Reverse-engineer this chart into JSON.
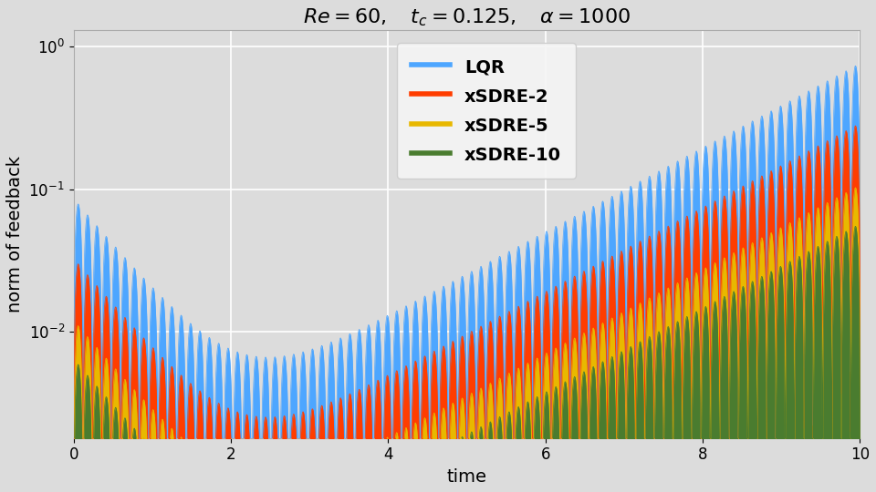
{
  "title": "$Re = 60, \\quad t_c = 0.125, \\quad \\alpha = 1000$",
  "xlabel": "time",
  "ylabel": "norm of feedback",
  "xlim": [
    0,
    10
  ],
  "ymin": 0.0018,
  "ymax": 1.3,
  "background_color": "#dcdcdc",
  "grid_color": "#ffffff",
  "series": [
    {
      "label": "LQR",
      "color": "#4da6ff",
      "amp0": 0.085,
      "amp_growth": 0.00085,
      "decay": 1.5,
      "growth": 0.68
    },
    {
      "label": "xSDRE-2",
      "color": "#ff3d00",
      "amp0": 0.085,
      "amp_growth": 0.00085,
      "decay": 1.5,
      "growth": 0.68
    },
    {
      "label": "xSDRE-5",
      "color": "#e8b800",
      "amp0": 0.085,
      "amp_growth": 0.00085,
      "decay": 1.5,
      "growth": 0.68
    },
    {
      "label": "xSDRE-10",
      "color": "#4a7c2f",
      "amp0": 0.085,
      "amp_growth": 0.00085,
      "decay": 1.5,
      "growth": 0.68
    }
  ],
  "scale_factors": [
    1.0,
    0.38,
    0.14,
    0.075
  ],
  "freq": 4.2,
  "legend_fontsize": 14,
  "title_fontsize": 16,
  "label_fontsize": 14,
  "tick_fontsize": 12
}
